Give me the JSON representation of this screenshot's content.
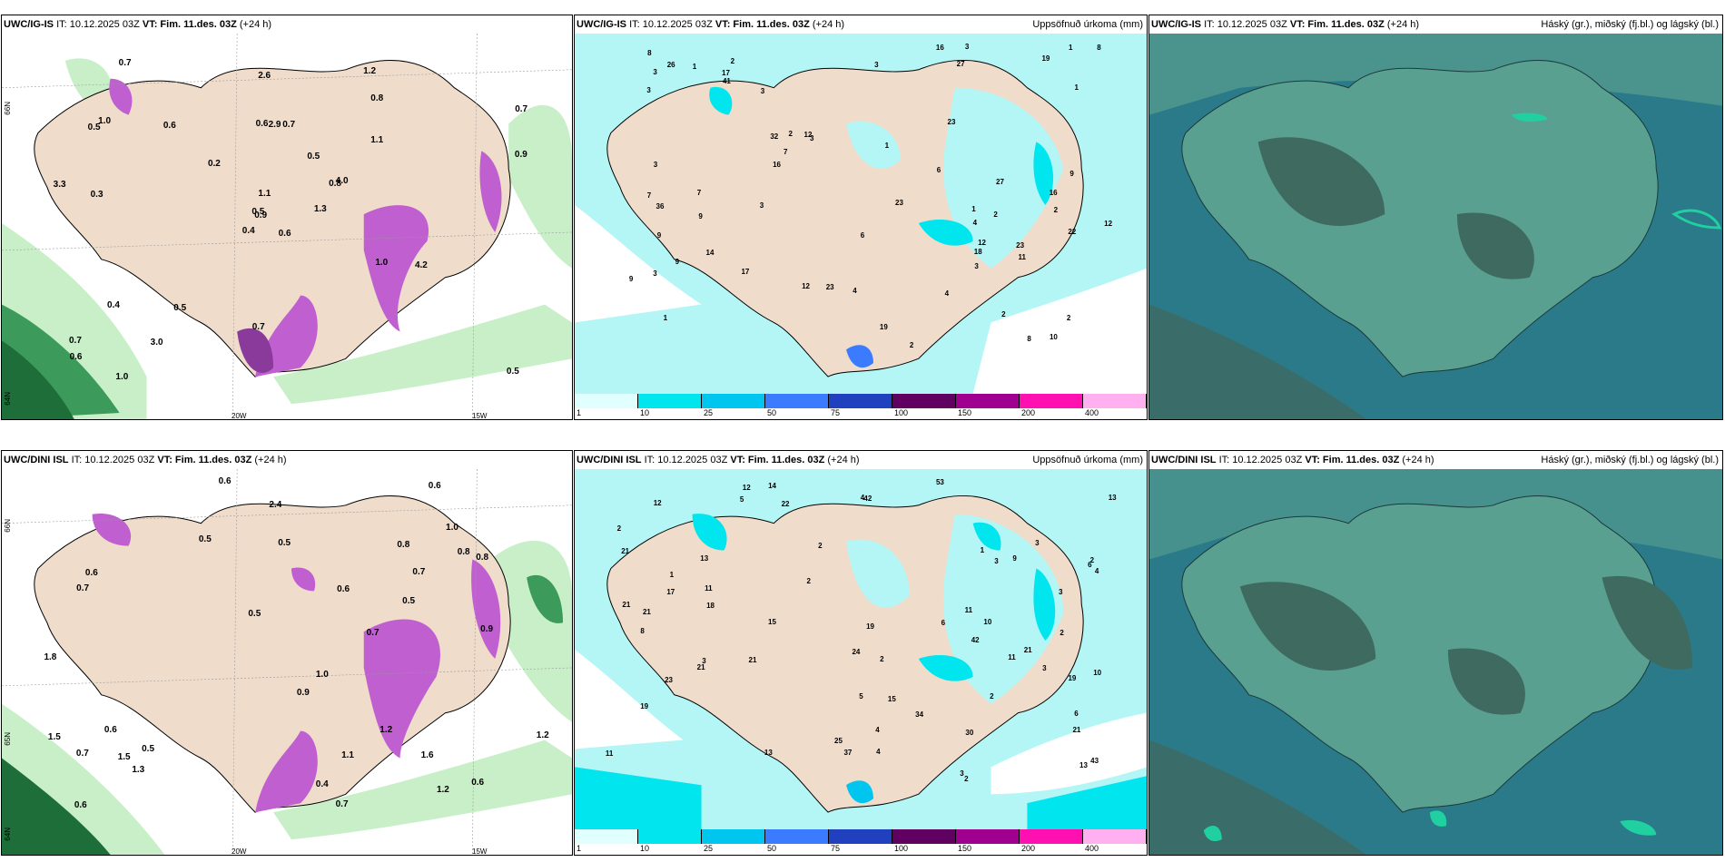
{
  "rows": [
    {
      "model": "UWC/IG-IS",
      "wind": {
        "it": "IT: 10.12.2025 03Z",
        "vt_label": "VT:",
        "vt_value": "Fim. 11.des. 03Z",
        "lead": "(+24 h)",
        "labels": [
          "0.6",
          "0.5",
          "0.9",
          "0.7",
          "0.8",
          "0.5",
          "1.2",
          "0.7",
          "0.8",
          "1.3",
          "0.7",
          "0.5",
          "0.3",
          "0.7",
          "0.4",
          "1.1",
          "1.0",
          "0.6",
          "0.5",
          "0.4",
          "0.2",
          "0.6",
          "3.0",
          "2.9",
          "4.0",
          "4.2",
          "1.0",
          "2.6",
          "3.3",
          "1.0",
          "0.9",
          "0.5",
          "0.7",
          "1.1",
          "0.6"
        ]
      },
      "precip": {
        "it": "IT: 10.12.2025 03Z",
        "vt_label": "VT:",
        "vt_value": "Fim. 11.des. 03Z",
        "lead": "(+24 h)",
        "title": "Uppsöfnuð úrkoma (mm)",
        "labels": [
          "4",
          "2",
          "1",
          "2",
          "3",
          "2",
          "3",
          "27",
          "32",
          "2",
          "3",
          "7",
          "3",
          "2",
          "12",
          "9",
          "6",
          "23",
          "12",
          "14",
          "8",
          "19",
          "16",
          "22",
          "16",
          "17",
          "12",
          "36",
          "41",
          "27",
          "19",
          "4",
          "7",
          "3",
          "16",
          "11",
          "18",
          "7",
          "4",
          "9",
          "1",
          "3",
          "10",
          "23",
          "23",
          "17",
          "9",
          "26",
          "6",
          "3",
          "12",
          "2",
          "1",
          "1",
          "3",
          "8",
          "23",
          "8",
          "9",
          "1",
          "2",
          "3",
          "1",
          "9",
          "3"
        ]
      },
      "cloud": {
        "it": "IT: 10.12.2025 03Z",
        "vt_label": "VT:",
        "vt_value": "Fim. 11.des. 03Z",
        "lead": "(+24 h)",
        "title": "Háský (gr.), miðský (fj.bl.) og lágský (bl.)"
      }
    },
    {
      "model": "UWC/DINI ISL",
      "wind": {
        "it": "IT: 10.12.2025 03Z",
        "vt_label": "VT:",
        "vt_value": "Fim. 11.des. 03Z",
        "lead": "(+24 h)",
        "labels": [
          "1.2",
          "0.7",
          "1.5",
          "0.8",
          "0.6",
          "1.3",
          "0.9",
          "1.2",
          "0.9",
          "0.5",
          "0.7",
          "0.4",
          "1.6",
          "0.7",
          "1.0",
          "0.8",
          "0.6",
          "0.5",
          "0.6",
          "1.8",
          "0.6",
          "0.5",
          "1.0",
          "0.8",
          "0.6",
          "0.5",
          "2.4",
          "0.7",
          "0.6",
          "0.7",
          "1.1",
          "1.2",
          "1.5",
          "0.5",
          "0.6"
        ]
      },
      "precip": {
        "it": "IT: 10.12.2025 03Z",
        "vt_label": "VT:",
        "vt_value": "Fim. 11.des. 03Z",
        "lead": "(+24 h)",
        "title": "Uppsöfnuð úrkoma (mm)",
        "labels": [
          "6",
          "3",
          "3",
          "3",
          "2",
          "3",
          "4",
          "3",
          "2",
          "37",
          "42",
          "11",
          "10",
          "2",
          "4",
          "17",
          "23",
          "22",
          "13",
          "21",
          "24",
          "19",
          "19",
          "21",
          "11",
          "10",
          "8",
          "13",
          "15",
          "21",
          "18",
          "21",
          "6",
          "13",
          "42",
          "30",
          "34",
          "43",
          "11",
          "9",
          "19",
          "4",
          "12",
          "2",
          "5",
          "21",
          "12",
          "15",
          "14",
          "2",
          "21",
          "21",
          "13",
          "1",
          "2",
          "4",
          "3",
          "2",
          "2",
          "25",
          "6",
          "5",
          "1",
          "11",
          "53"
        ]
      },
      "cloud": {
        "it": "IT: 10.12.2025 03Z",
        "vt_label": "VT:",
        "vt_value": "Fim. 11.des. 03Z",
        "lead": "(+24 h)",
        "title": "Háský (gr.), miðský (fj.bl.) og lágský (bl.)"
      }
    }
  ],
  "axes": {
    "lat_66": "66N",
    "lat_64": "64N",
    "lat_65": "65N",
    "lon_20": "20W",
    "lon_15": "15W"
  },
  "colorbar": {
    "ticks": [
      "1",
      "10",
      "25",
      "50",
      "75",
      "100",
      "150",
      "200",
      "400"
    ],
    "colors": [
      "#e0ffff",
      "#00e5ee",
      "#00c5ee",
      "#3a7bff",
      "#2040c0",
      "#600060",
      "#a00090",
      "#ff10b0",
      "#ffb0f0"
    ]
  },
  "colors": {
    "land": "#efdccb",
    "sea_precip": "#b4f6f6",
    "wind_green_light": "#c8efc8",
    "wind_green_dark": "#1e6e3a",
    "magenta": "#c060d0",
    "cloud_bg": "#2a7a8a",
    "cloud_mid": "#5aa090",
    "cloud_dark": "#3e6a60"
  }
}
